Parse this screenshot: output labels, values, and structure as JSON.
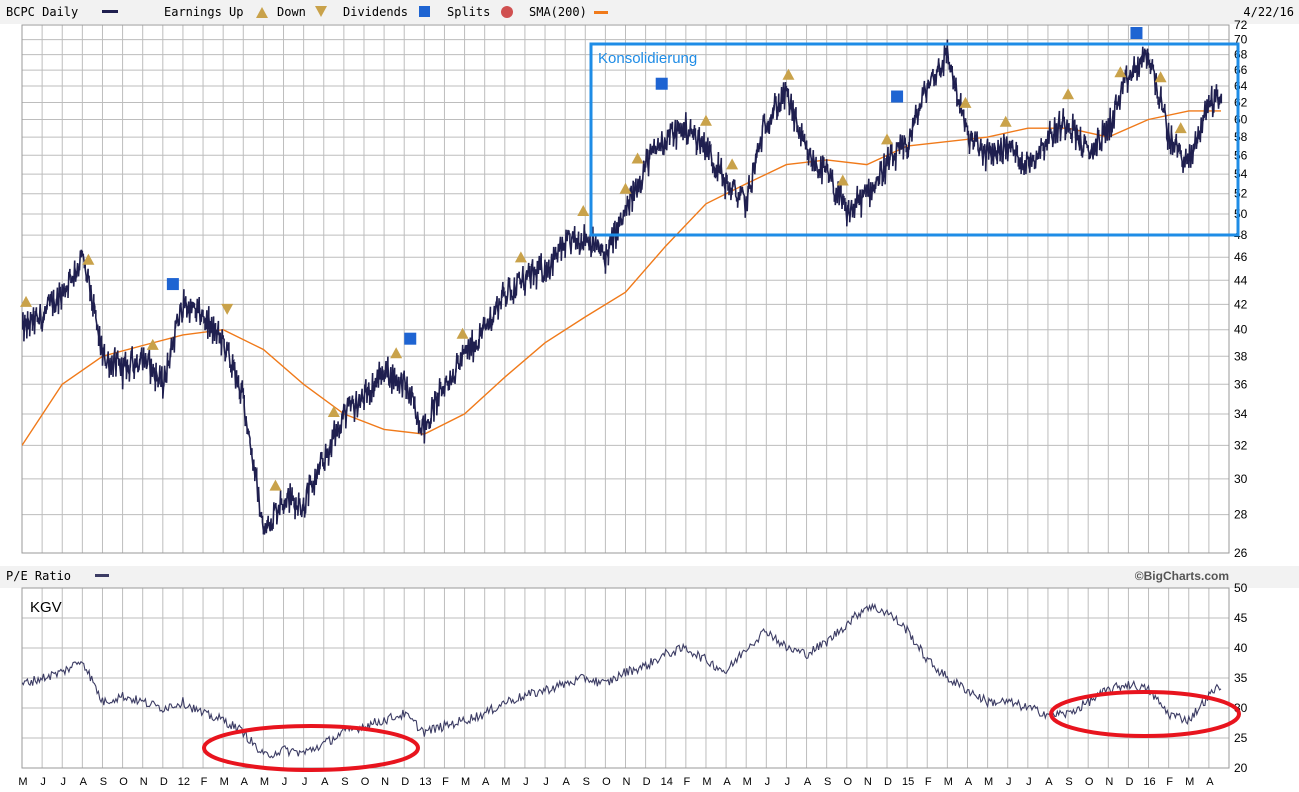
{
  "header": {
    "symbol": "BCPC Daily",
    "earnings_up": "Earnings Up",
    "down": "Down",
    "dividends": "Dividends",
    "splits": "Splits",
    "sma": "SMA(200)",
    "date": "4/22/16"
  },
  "sub_header": {
    "label": "P/E Ratio",
    "credit": "©BigCharts.com"
  },
  "annotations": {
    "consolidation": "Konsolidierung",
    "pe_note": "KGV"
  },
  "colors": {
    "price": "#1f1f4f",
    "sma": "#f07a1a",
    "pe": "#3c3c64",
    "grid": "#bdbdbd",
    "box": "#1e8ce6",
    "circle": "#e8141e",
    "earn_icon": "#c9a24a",
    "div_icon": "#1e64d2",
    "split_icon": "#d05050"
  },
  "chart_data": [
    {
      "type": "line",
      "title": "BCPC Daily",
      "x_axis_labels": [
        "M",
        "J",
        "J",
        "A",
        "S",
        "O",
        "N",
        "D",
        "12",
        "F",
        "M",
        "A",
        "M",
        "J",
        "J",
        "A",
        "S",
        "O",
        "N",
        "D",
        "13",
        "F",
        "M",
        "A",
        "M",
        "J",
        "J",
        "A",
        "S",
        "O",
        "N",
        "D",
        "14",
        "F",
        "M",
        "A",
        "M",
        "J",
        "J",
        "A",
        "S",
        "O",
        "N",
        "D",
        "15",
        "F",
        "M",
        "A",
        "M",
        "J",
        "J",
        "A",
        "S",
        "O",
        "N",
        "D",
        "16",
        "F",
        "M",
        "A"
      ],
      "y_ticks": [
        26,
        28,
        30,
        32,
        34,
        36,
        38,
        40,
        42,
        44,
        46,
        48,
        50,
        52,
        54,
        56,
        58,
        60,
        62,
        64,
        66,
        68,
        70,
        72
      ],
      "ylim": [
        26,
        72
      ],
      "y_scale": "log",
      "grid": true,
      "series": [
        {
          "name": "BCPC Daily",
          "x_month_index": [
            0,
            1,
            2,
            3,
            4,
            5,
            6,
            7,
            8,
            9,
            10,
            11,
            12,
            13,
            14,
            15,
            16,
            17,
            18,
            19,
            20,
            21,
            22,
            23,
            24,
            25,
            26,
            27,
            28,
            29,
            30,
            31,
            32,
            33,
            34,
            35,
            36,
            37,
            38,
            39,
            40,
            41,
            42,
            43,
            44,
            45,
            46,
            47,
            48,
            49,
            50,
            51,
            52,
            53,
            54,
            55,
            56,
            57,
            58,
            59,
            59.6
          ],
          "values": [
            40,
            41,
            43,
            46,
            38,
            37,
            38,
            36,
            42,
            41,
            39,
            35,
            27,
            29,
            28.5,
            31,
            34,
            35,
            37,
            36,
            33,
            36,
            38,
            40,
            43,
            44,
            45,
            47,
            48,
            46,
            50,
            55,
            58,
            59,
            57,
            53,
            51,
            60,
            63,
            56,
            54,
            50,
            52,
            55,
            57,
            64,
            68,
            58,
            56,
            57,
            55,
            58,
            60,
            56,
            59,
            65,
            68,
            58,
            55,
            62,
            63
          ]
        },
        {
          "name": "SMA(200)",
          "x_month_index": [
            0,
            2,
            4,
            6,
            8,
            10,
            12,
            14,
            16,
            18,
            20,
            22,
            24,
            26,
            28,
            30,
            32,
            34,
            36,
            38,
            40,
            42,
            44,
            46,
            48,
            50,
            52,
            54,
            56,
            58,
            59.6
          ],
          "values": [
            32,
            36,
            38,
            38.8,
            39.6,
            40,
            38.5,
            36,
            34,
            33,
            32.7,
            34,
            36.5,
            39,
            41,
            43,
            47,
            51,
            53,
            55,
            55.5,
            55,
            57,
            57.5,
            58,
            59,
            59,
            58,
            60,
            61,
            61
          ]
        }
      ],
      "markers": {
        "earnings_up": [
          0.2,
          3.3,
          6.5,
          12.6,
          15.5,
          18.6,
          21.9,
          24.8,
          27.9,
          30.0,
          30.6,
          34.0,
          35.3,
          38.1,
          40.8,
          43.0,
          46.9,
          48.9,
          52.0,
          54.6,
          56.6,
          57.6
        ],
        "down": [
          10.2
        ],
        "dividends": [
          7.5,
          19.3,
          31.8,
          43.5,
          55.4
        ]
      }
    },
    {
      "type": "line",
      "title": "P/E Ratio",
      "y_ticks": [
        20,
        25,
        30,
        35,
        40,
        45,
        50
      ],
      "ylim": [
        20,
        50
      ],
      "grid": true,
      "x_month_index": [
        0,
        1,
        2,
        3,
        4,
        5,
        6,
        7,
        8,
        9,
        10,
        11,
        12,
        13,
        14,
        15,
        16,
        17,
        18,
        19,
        20,
        21,
        22,
        23,
        24,
        25,
        26,
        27,
        28,
        29,
        30,
        31,
        32,
        33,
        34,
        35,
        36,
        37,
        38,
        39,
        40,
        41,
        42,
        43,
        44,
        45,
        46,
        47,
        48,
        49,
        50,
        51,
        52,
        53,
        54,
        55,
        56,
        57,
        58,
        59,
        59.6
      ],
      "values": [
        34,
        35,
        36,
        38,
        31,
        32,
        31,
        30,
        31,
        29,
        28,
        26,
        22,
        23,
        22.5,
        24,
        26,
        27,
        28,
        29,
        26,
        27,
        28,
        29,
        31,
        32,
        33,
        34,
        35,
        34,
        36,
        37,
        39,
        40,
        38,
        36,
        40,
        43,
        40,
        39,
        41,
        44,
        47,
        46,
        43,
        38,
        35,
        33,
        31,
        31,
        30,
        29,
        29,
        31,
        33,
        34,
        33,
        29,
        28,
        32,
        34
      ]
    }
  ]
}
